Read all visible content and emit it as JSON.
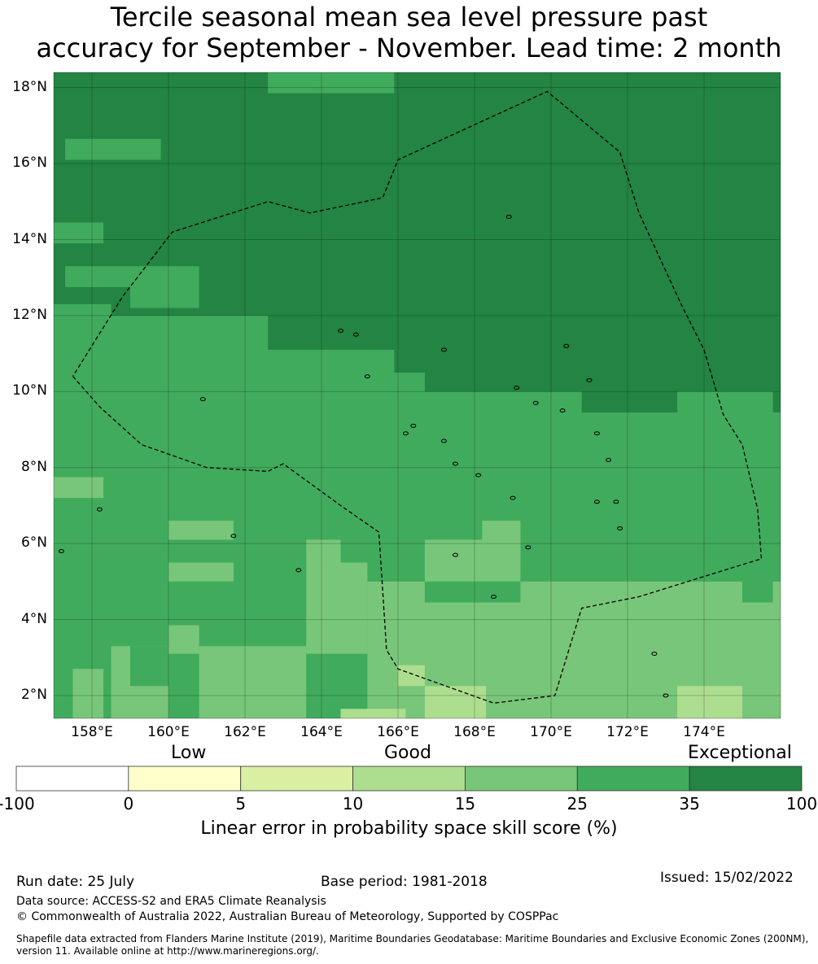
{
  "title": {
    "line1": "Tercile seasonal mean sea level pressure past",
    "line2": "accuracy for September - November. Lead time: 2 month"
  },
  "map": {
    "lon_range": [
      157.0,
      176.0
    ],
    "lat_range": [
      1.4,
      18.4
    ],
    "lat_ticks": [
      {
        "value": 18,
        "label": "18°N"
      },
      {
        "value": 16,
        "label": "16°N"
      },
      {
        "value": 14,
        "label": "14°N"
      },
      {
        "value": 12,
        "label": "12°N"
      },
      {
        "value": 10,
        "label": "10°N"
      },
      {
        "value": 8,
        "label": "8°N"
      },
      {
        "value": 6,
        "label": "6°N"
      },
      {
        "value": 4,
        "label": "4°N"
      },
      {
        "value": 2,
        "label": "2°N"
      }
    ],
    "lon_ticks": [
      {
        "value": 158,
        "label": "158°E"
      },
      {
        "value": 160,
        "label": "160°E"
      },
      {
        "value": 162,
        "label": "162°E"
      },
      {
        "value": 164,
        "label": "164°E"
      },
      {
        "value": 166,
        "label": "166°E"
      },
      {
        "value": 168,
        "label": "168°E"
      },
      {
        "value": 170,
        "label": "170°E"
      },
      {
        "value": 172,
        "label": "172°E"
      },
      {
        "value": 174,
        "label": "174°E"
      }
    ],
    "skill_classes_hex": [
      "#ffffcc",
      "#d9f0a3",
      "#addd8e",
      "#78c679",
      "#41ab5d",
      "#238443"
    ],
    "eez_boundary": [
      [
        157.5,
        10.4
      ],
      [
        158.2,
        9.6
      ],
      [
        159.3,
        8.6
      ],
      [
        161.0,
        8.0
      ],
      [
        162.6,
        7.9
      ],
      [
        163.0,
        8.1
      ],
      [
        164.5,
        7.0
      ],
      [
        165.5,
        6.3
      ],
      [
        165.7,
        3.2
      ],
      [
        166.0,
        2.7
      ],
      [
        168.5,
        1.8
      ],
      [
        170.1,
        2.0
      ],
      [
        170.8,
        4.3
      ],
      [
        172.3,
        4.6
      ],
      [
        175.5,
        5.6
      ],
      [
        175.4,
        6.9
      ],
      [
        175.0,
        8.6
      ],
      [
        174.5,
        9.4
      ],
      [
        174.0,
        11.1
      ],
      [
        173.4,
        12.3
      ],
      [
        172.3,
        14.7
      ],
      [
        171.8,
        16.3
      ],
      [
        169.9,
        17.9
      ],
      [
        166.0,
        16.1
      ],
      [
        165.6,
        15.1
      ],
      [
        163.7,
        14.7
      ],
      [
        162.6,
        15.0
      ],
      [
        160.1,
        14.2
      ],
      [
        158.8,
        12.5
      ],
      [
        157.5,
        10.4
      ]
    ]
  },
  "colorbar": {
    "categories": [
      "Low",
      "Good",
      "Exceptional"
    ],
    "bounds": [
      "-100",
      "0",
      "5",
      "10",
      "15",
      "25",
      "35",
      "100"
    ],
    "colors": [
      "#ffffff",
      "#ffffcc",
      "#d9f0a3",
      "#addd8e",
      "#78c679",
      "#41ab5d",
      "#238443"
    ],
    "label": "Linear error in probability space skill score (%)"
  },
  "footer": {
    "run_date": "Run date: 25 July",
    "base_period": "Base period: 1981-2018",
    "issued": "Issued: 15/02/2022",
    "data_source": "Data source: ACCESS-S2 and ERA5 Climate Reanalysis",
    "copyright": "© Commonwealth of Australia 2022, Australian Bureau of Meteorology, Supported by COSPPac",
    "shapefile": "Shapefile data extracted from Flanders Marine Institute (2019), Maritime Boundaries Geodatabase: Maritime Boundaries and Exclusive Economic Zones (200NM), version 11. Available online at http://www.marineregions.org/."
  }
}
